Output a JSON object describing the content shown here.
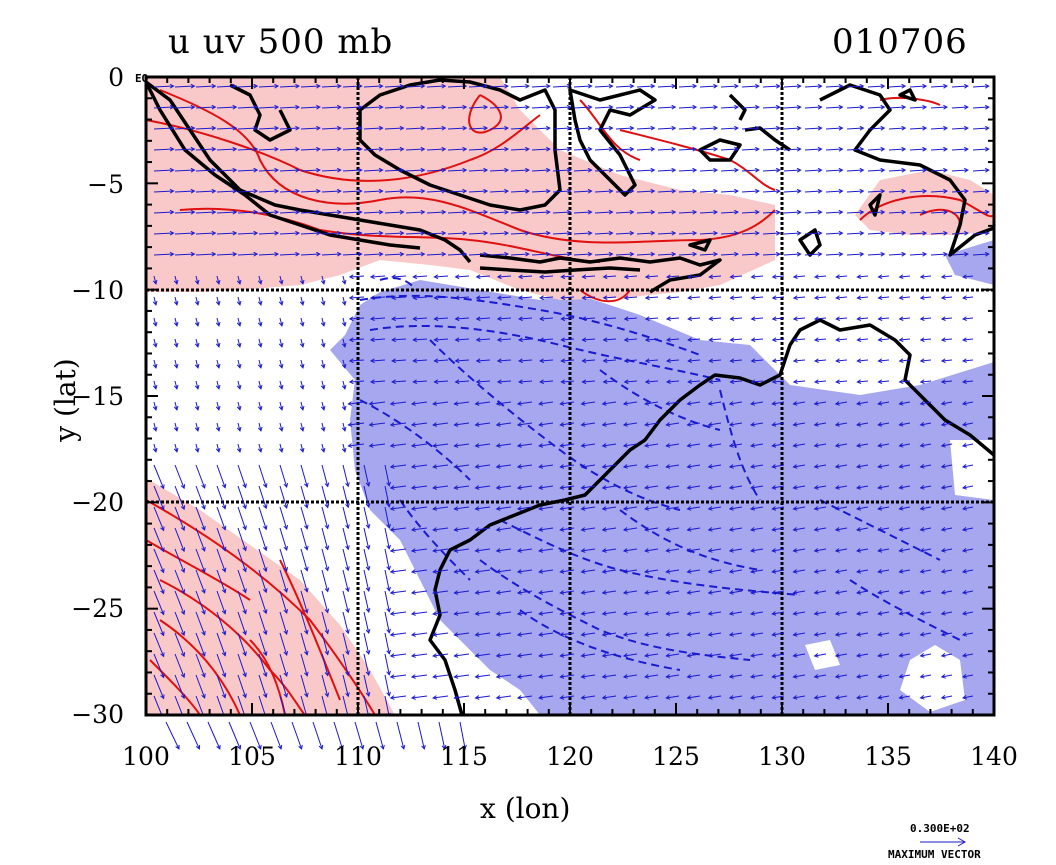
{
  "title": {
    "left": "u uv 500 mb",
    "right": "010706"
  },
  "axes": {
    "xlabel": "x (lon)",
    "ylabel": "y (lat)",
    "xlim": [
      100,
      140
    ],
    "ylim": [
      -30,
      0
    ],
    "x_ticks": [
      "100",
      "105",
      "110",
      "115",
      "120",
      "125",
      "130",
      "135",
      "140"
    ],
    "y_ticks": [
      "0",
      "−5",
      "−10",
      "−15",
      "−20",
      "−25",
      "−30"
    ],
    "equator_label": "EQ",
    "gridlines_x": [
      110,
      120,
      130
    ],
    "gridlines_y": [
      -10,
      -20
    ]
  },
  "colors": {
    "positive_fill": "#f9c8c8",
    "positive_contour": "#e01010",
    "negative_fill": "#a7a7ef",
    "negative_contour": "#1a1ad0",
    "vector": "#1a1ad0",
    "coastline": "#000000"
  },
  "vector_legend": {
    "value": "0.300E+02",
    "label": "MAXIMUM VECTOR"
  }
}
